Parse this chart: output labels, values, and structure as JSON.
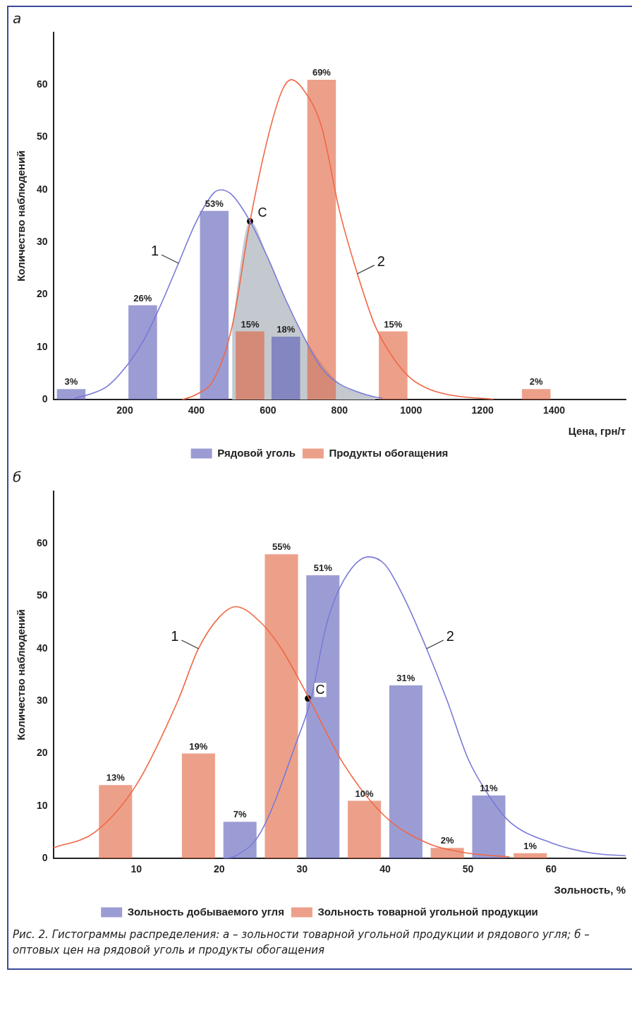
{
  "chart_data": [
    {
      "type": "bar",
      "title": "а",
      "xlabel": "Цена, грн/т",
      "ylabel": "Количество наблюдений",
      "legend": "bottom",
      "xlim": [
        0,
        1600
      ],
      "xticks": [
        200,
        400,
        600,
        800,
        1000,
        1200,
        1400
      ],
      "ylim": [
        0,
        70
      ],
      "yticks": [
        0,
        10,
        20,
        30,
        40,
        50,
        60
      ],
      "series": [
        {
          "type": "area",
          "color": "#c4c9cf",
          "x": [
            500,
            550,
            600,
            650,
            700,
            800,
            850,
            900
          ],
          "values": [
            14,
            34,
            27,
            19,
            12,
            3,
            1.5,
            0.5
          ]
        },
        {
          "name": "Рядовой уголь",
          "color": "#5a5ab8",
          "x": [
            50,
            250,
            450,
            650
          ],
          "values": [
            2,
            18,
            36,
            12
          ]
        },
        {
          "name": "Продукты обогащения",
          "color": "#e0603c",
          "x": [
            550,
            750,
            950,
            1350
          ],
          "values": [
            13,
            61,
            13,
            2
          ]
        },
        {
          "type": "line",
          "color": "#7a7ad8",
          "x": [
            60,
            100,
            150,
            200,
            250,
            300,
            350,
            400,
            450,
            470,
            500,
            550,
            600,
            650,
            700,
            750,
            800,
            850,
            900,
            920
          ],
          "values": [
            0.3,
            1,
            2.5,
            6,
            11,
            18,
            26,
            34,
            39.5,
            40,
            39,
            34,
            27,
            19,
            12,
            6,
            3,
            1.5,
            0.5,
            0.3
          ]
        },
        {
          "type": "line",
          "color": "#f06844",
          "x": [
            360,
            400,
            450,
            500,
            550,
            600,
            640,
            665,
            700,
            750,
            800,
            850,
            900,
            950,
            1000,
            1050,
            1100,
            1150,
            1230
          ],
          "values": [
            0,
            1,
            4,
            14,
            34,
            50,
            59,
            61,
            59,
            52,
            36,
            24,
            14,
            8,
            4,
            2,
            1,
            0.5,
            0.1
          ]
        },
        {
          "type": "scatter",
          "name": "С",
          "color": "#000000",
          "marker": "circle",
          "x": [
            550
          ],
          "values": [
            34
          ]
        }
      ],
      "annotations": [
        {
          "text": "3%",
          "x": 50,
          "y": 2
        },
        {
          "text": "26%",
          "x": 250,
          "y": 18
        },
        {
          "text": "53%",
          "x": 450,
          "y": 36
        },
        {
          "text": "18%",
          "x": 650,
          "y": 12
        },
        {
          "text": "15%",
          "x": 550,
          "y": 13
        },
        {
          "text": "69%",
          "x": 750,
          "y": 61
        },
        {
          "text": "15%",
          "x": 950,
          "y": 13
        },
        {
          "text": "2%",
          "x": 1350,
          "y": 2
        },
        {
          "text": "1",
          "x": 350,
          "y": 26
        },
        {
          "text": "2",
          "x": 850,
          "y": 24
        }
      ]
    },
    {
      "type": "bar",
      "title": "б",
      "xlabel": "Зольность, %",
      "ylabel": "Количество наблюдений",
      "legend": "bottom",
      "xlim": [
        0,
        69
      ],
      "xticks": [
        10,
        20,
        30,
        40,
        50,
        60
      ],
      "ylim": [
        0,
        70
      ],
      "yticks": [
        0,
        10,
        20,
        30,
        40,
        50,
        60
      ],
      "series": [
        {
          "name": "Зольность добываемого угля",
          "color": "#5a5ab8",
          "x": [
            22.5,
            32.5,
            42.5,
            52.5
          ],
          "values": [
            7,
            54,
            33,
            12
          ]
        },
        {
          "name": "Зольность товарной угольной продукции",
          "color": "#e0603c",
          "x": [
            7.5,
            17.5,
            27.5,
            37.5,
            47.5,
            57.5
          ],
          "values": [
            14,
            20,
            58,
            11,
            2,
            1
          ]
        },
        {
          "type": "line",
          "color": "#f06844",
          "x": [
            0,
            5,
            10,
            15,
            17.5,
            20,
            22,
            25,
            27.5,
            30,
            31,
            35,
            40,
            45,
            50,
            55
          ],
          "values": [
            2,
            5,
            14,
            30,
            40,
            46,
            48,
            45,
            40,
            33,
            30,
            18,
            8,
            3,
            1,
            0.3
          ]
        },
        {
          "type": "line",
          "color": "#7a7ad8",
          "x": [
            20.5,
            22,
            25,
            29.5,
            31,
            33,
            35,
            38,
            40,
            42.5,
            45,
            47.5,
            50,
            52.5,
            55,
            60,
            65,
            69
          ],
          "values": [
            0,
            0.5,
            5,
            23,
            30,
            45,
            53,
            57.5,
            56,
            49,
            40,
            30,
            19,
            12,
            7,
            3,
            1,
            0.5
          ]
        },
        {
          "type": "scatter",
          "name": "С",
          "color": "#000000",
          "marker": "circle",
          "x": [
            30.7
          ],
          "values": [
            30.5
          ]
        }
      ],
      "annotations": [
        {
          "text": "7%",
          "x": 22.5,
          "y": 7
        },
        {
          "text": "51%",
          "x": 32.5,
          "y": 54
        },
        {
          "text": "31%",
          "x": 42.5,
          "y": 33
        },
        {
          "text": "11%",
          "x": 52.5,
          "y": 12
        },
        {
          "text": "13%",
          "x": 7.5,
          "y": 14
        },
        {
          "text": "19%",
          "x": 17.5,
          "y": 20
        },
        {
          "text": "55%",
          "x": 27.5,
          "y": 58
        },
        {
          "text": "10%",
          "x": 37.5,
          "y": 11
        },
        {
          "text": "2%",
          "x": 47.5,
          "y": 2
        },
        {
          "text": "1%",
          "x": 57.5,
          "y": 1
        },
        {
          "text": "1",
          "x": 17.5,
          "y": 40
        },
        {
          "text": "2",
          "x": 45,
          "y": 40
        },
        "Рис. 2. Гистограммы распределения: а – зольности товарной угольной продукции и рядового угля; б – оптовых цен на рядовой уголь и продукты обогащения"
      ]
    }
  ]
}
